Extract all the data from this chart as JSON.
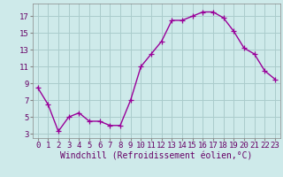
{
  "x": [
    0,
    1,
    2,
    3,
    4,
    5,
    6,
    7,
    8,
    9,
    10,
    11,
    12,
    13,
    14,
    15,
    16,
    17,
    18,
    19,
    20,
    21,
    22,
    23
  ],
  "y": [
    8.5,
    6.5,
    3.3,
    5.0,
    5.5,
    4.5,
    4.5,
    4.0,
    4.0,
    7.0,
    11.0,
    12.5,
    14.0,
    16.5,
    16.5,
    17.0,
    17.5,
    17.5,
    16.8,
    15.2,
    13.2,
    12.5,
    10.5,
    9.5
  ],
  "line_color": "#990099",
  "marker": "+",
  "marker_size": 4,
  "linewidth": 1.0,
  "background_color": "#ceeaea",
  "grid_color": "#aacccc",
  "xlabel": "Windchill (Refroidissement éolien,°C)",
  "xlabel_color": "#660066",
  "xlabel_fontsize": 7,
  "tick_color": "#660066",
  "tick_fontsize": 6.5,
  "ylim": [
    2.5,
    18.5
  ],
  "xlim": [
    -0.5,
    23.5
  ],
  "yticks": [
    3,
    5,
    7,
    9,
    11,
    13,
    15,
    17
  ],
  "xticks": [
    0,
    1,
    2,
    3,
    4,
    5,
    6,
    7,
    8,
    9,
    10,
    11,
    12,
    13,
    14,
    15,
    16,
    17,
    18,
    19,
    20,
    21,
    22,
    23
  ]
}
